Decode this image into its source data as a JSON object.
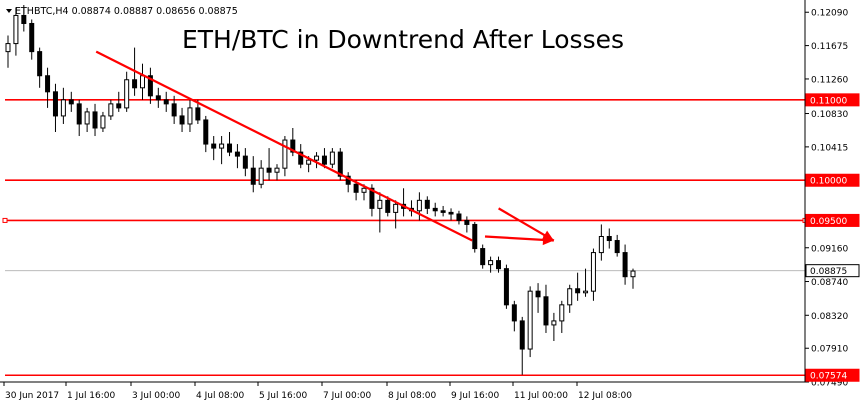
{
  "header": {
    "symbol_text": "ETHBTC,H4  0.08874 0.08887 0.08656 0.08875",
    "caret_icon": "triangle-down-icon"
  },
  "chart_data": {
    "type": "candlestick",
    "title": "ETH/BTC in Downtrend After Losses",
    "symbol": "ETHBTC",
    "timeframe": "H4",
    "ohlc_readout": {
      "open": 0.08874,
      "high": 0.08887,
      "low": 0.08656,
      "close": 0.08875
    },
    "ylim": [
      0.0749,
      0.1218
    ],
    "y_ticks": [
      "0.12090",
      "0.11675",
      "0.11260",
      "0.10830",
      "0.10415",
      "0.09500",
      "0.09160",
      "0.08740",
      "0.08320",
      "0.07910",
      "0.07490"
    ],
    "x_labels": [
      "30 Jun 2017",
      "1 Jul 16:00",
      "3 Jul 00:00",
      "4 Jul 08:00",
      "5 Jul 16:00",
      "7 Jul 00:00",
      "8 Jul 08:00",
      "9 Jul 16:00",
      "11 Jul 00:00",
      "12 Jul 08:00"
    ],
    "levels": [
      {
        "value": 0.11,
        "label": "0.11000",
        "color": "#ff0000"
      },
      {
        "value": 0.1,
        "label": "0.10000",
        "color": "#ff0000"
      },
      {
        "value": 0.095,
        "label": "0.09500",
        "color": "#ff0000"
      },
      {
        "value": 0.07574,
        "label": "0.07574",
        "color": "#ff0000"
      }
    ],
    "current_price": {
      "value": 0.08875,
      "label": "0.08875"
    },
    "candles": [
      [
        0.116,
        0.118,
        0.114,
        0.117
      ],
      [
        0.117,
        0.1215,
        0.1155,
        0.1205
      ],
      [
        0.1205,
        0.1218,
        0.1185,
        0.1195
      ],
      [
        0.1195,
        0.12,
        0.115,
        0.116
      ],
      [
        0.116,
        0.1165,
        0.1115,
        0.113
      ],
      [
        0.113,
        0.114,
        0.109,
        0.111
      ],
      [
        0.111,
        0.112,
        0.106,
        0.108
      ],
      [
        0.108,
        0.1115,
        0.107,
        0.11
      ],
      [
        0.11,
        0.111,
        0.1085,
        0.1095
      ],
      [
        0.1095,
        0.11,
        0.1055,
        0.107
      ],
      [
        0.107,
        0.109,
        0.106,
        0.1085
      ],
      [
        0.1085,
        0.1095,
        0.1055,
        0.1065
      ],
      [
        0.1065,
        0.1085,
        0.106,
        0.108
      ],
      [
        0.108,
        0.11,
        0.1075,
        0.1095
      ],
      [
        0.1095,
        0.111,
        0.1085,
        0.109
      ],
      [
        0.109,
        0.1135,
        0.1085,
        0.1125
      ],
      [
        0.1125,
        0.1165,
        0.1105,
        0.1115
      ],
      [
        0.1115,
        0.1145,
        0.11,
        0.113
      ],
      [
        0.113,
        0.114,
        0.1095,
        0.1105
      ],
      [
        0.1105,
        0.1115,
        0.109,
        0.11
      ],
      [
        0.11,
        0.111,
        0.1085,
        0.1095
      ],
      [
        0.1095,
        0.1105,
        0.107,
        0.108
      ],
      [
        0.108,
        0.109,
        0.106,
        0.107
      ],
      [
        0.107,
        0.11,
        0.106,
        0.109
      ],
      [
        0.109,
        0.11,
        0.107,
        0.1075
      ],
      [
        0.1075,
        0.108,
        0.1035,
        0.1045
      ],
      [
        0.1045,
        0.1055,
        0.1025,
        0.104
      ],
      [
        0.104,
        0.1055,
        0.102,
        0.1045
      ],
      [
        0.1045,
        0.106,
        0.103,
        0.1035
      ],
      [
        0.1035,
        0.1045,
        0.1015,
        0.103
      ],
      [
        0.103,
        0.104,
        0.1005,
        0.1015
      ],
      [
        0.1015,
        0.103,
        0.0985,
        0.0995
      ],
      [
        0.0995,
        0.1025,
        0.099,
        0.1015
      ],
      [
        0.1015,
        0.104,
        0.1,
        0.101
      ],
      [
        0.101,
        0.102,
        0.1,
        0.1015
      ],
      [
        0.1015,
        0.1055,
        0.1005,
        0.105
      ],
      [
        0.105,
        0.1065,
        0.103,
        0.1035
      ],
      [
        0.1035,
        0.1045,
        0.1015,
        0.102
      ],
      [
        0.102,
        0.103,
        0.101,
        0.1025
      ],
      [
        0.1025,
        0.1035,
        0.1015,
        0.103
      ],
      [
        0.103,
        0.104,
        0.1015,
        0.102
      ],
      [
        0.102,
        0.104,
        0.1015,
        0.1035
      ],
      [
        0.1035,
        0.104,
        0.1,
        0.1005
      ],
      [
        0.1005,
        0.101,
        0.0985,
        0.0995
      ],
      [
        0.0995,
        0.1,
        0.0975,
        0.0985
      ],
      [
        0.0985,
        0.0995,
        0.0975,
        0.099
      ],
      [
        0.099,
        0.0995,
        0.0955,
        0.0965
      ],
      [
        0.0965,
        0.0985,
        0.0935,
        0.0975
      ],
      [
        0.0975,
        0.098,
        0.0955,
        0.096
      ],
      [
        0.096,
        0.0975,
        0.094,
        0.097
      ],
      [
        0.097,
        0.099,
        0.0955,
        0.0965
      ],
      [
        0.0965,
        0.0975,
        0.0955,
        0.0962
      ],
      [
        0.0962,
        0.0985,
        0.095,
        0.0975
      ],
      [
        0.0975,
        0.098,
        0.0958,
        0.0965
      ],
      [
        0.0965,
        0.0972,
        0.0955,
        0.0962
      ],
      [
        0.0962,
        0.0968,
        0.0955,
        0.096
      ],
      [
        0.096,
        0.0965,
        0.095,
        0.0958
      ],
      [
        0.0958,
        0.0962,
        0.0945,
        0.095
      ],
      [
        0.095,
        0.0955,
        0.0935,
        0.0945
      ],
      [
        0.0945,
        0.0948,
        0.091,
        0.0915
      ],
      [
        0.0915,
        0.092,
        0.089,
        0.0895
      ],
      [
        0.0895,
        0.0905,
        0.0885,
        0.09
      ],
      [
        0.09,
        0.0905,
        0.0885,
        0.089
      ],
      [
        0.089,
        0.0895,
        0.084,
        0.0845
      ],
      [
        0.0845,
        0.085,
        0.0812,
        0.0825
      ],
      [
        0.0825,
        0.083,
        0.0758,
        0.079
      ],
      [
        0.079,
        0.0868,
        0.078,
        0.0862
      ],
      [
        0.0862,
        0.0872,
        0.0835,
        0.0855
      ],
      [
        0.0855,
        0.087,
        0.081,
        0.082
      ],
      [
        0.082,
        0.0835,
        0.08,
        0.0825
      ],
      [
        0.0825,
        0.085,
        0.081,
        0.0845
      ],
      [
        0.0845,
        0.087,
        0.0835,
        0.0865
      ],
      [
        0.0865,
        0.0885,
        0.085,
        0.086
      ],
      [
        0.086,
        0.089,
        0.0855,
        0.0862
      ],
      [
        0.0862,
        0.0915,
        0.085,
        0.091
      ],
      [
        0.091,
        0.0945,
        0.09,
        0.093
      ],
      [
        0.093,
        0.094,
        0.0915,
        0.0925
      ],
      [
        0.0925,
        0.0932,
        0.0905,
        0.091
      ],
      [
        0.091,
        0.092,
        0.087,
        0.088
      ],
      [
        0.088,
        0.089,
        0.0865,
        0.0887
      ]
    ],
    "trend_lines": [
      {
        "from": [
          0.114,
          0.116
        ],
        "to": [
          0.584,
          0.0925
        ],
        "color": "#ff0000"
      }
    ],
    "arrows": [
      {
        "from": [
          0.617,
          0.0965
        ],
        "to": [
          0.686,
          0.0925
        ],
        "color": "#ff0000"
      },
      {
        "from": [
          0.6,
          0.093
        ],
        "to": [
          0.686,
          0.0925
        ],
        "color": "#ff0000"
      }
    ],
    "grid": false,
    "colors": {
      "up": "#ffffff",
      "down": "#000000",
      "level": "#ff0000",
      "current": "#000000",
      "axis": "#000000"
    }
  }
}
